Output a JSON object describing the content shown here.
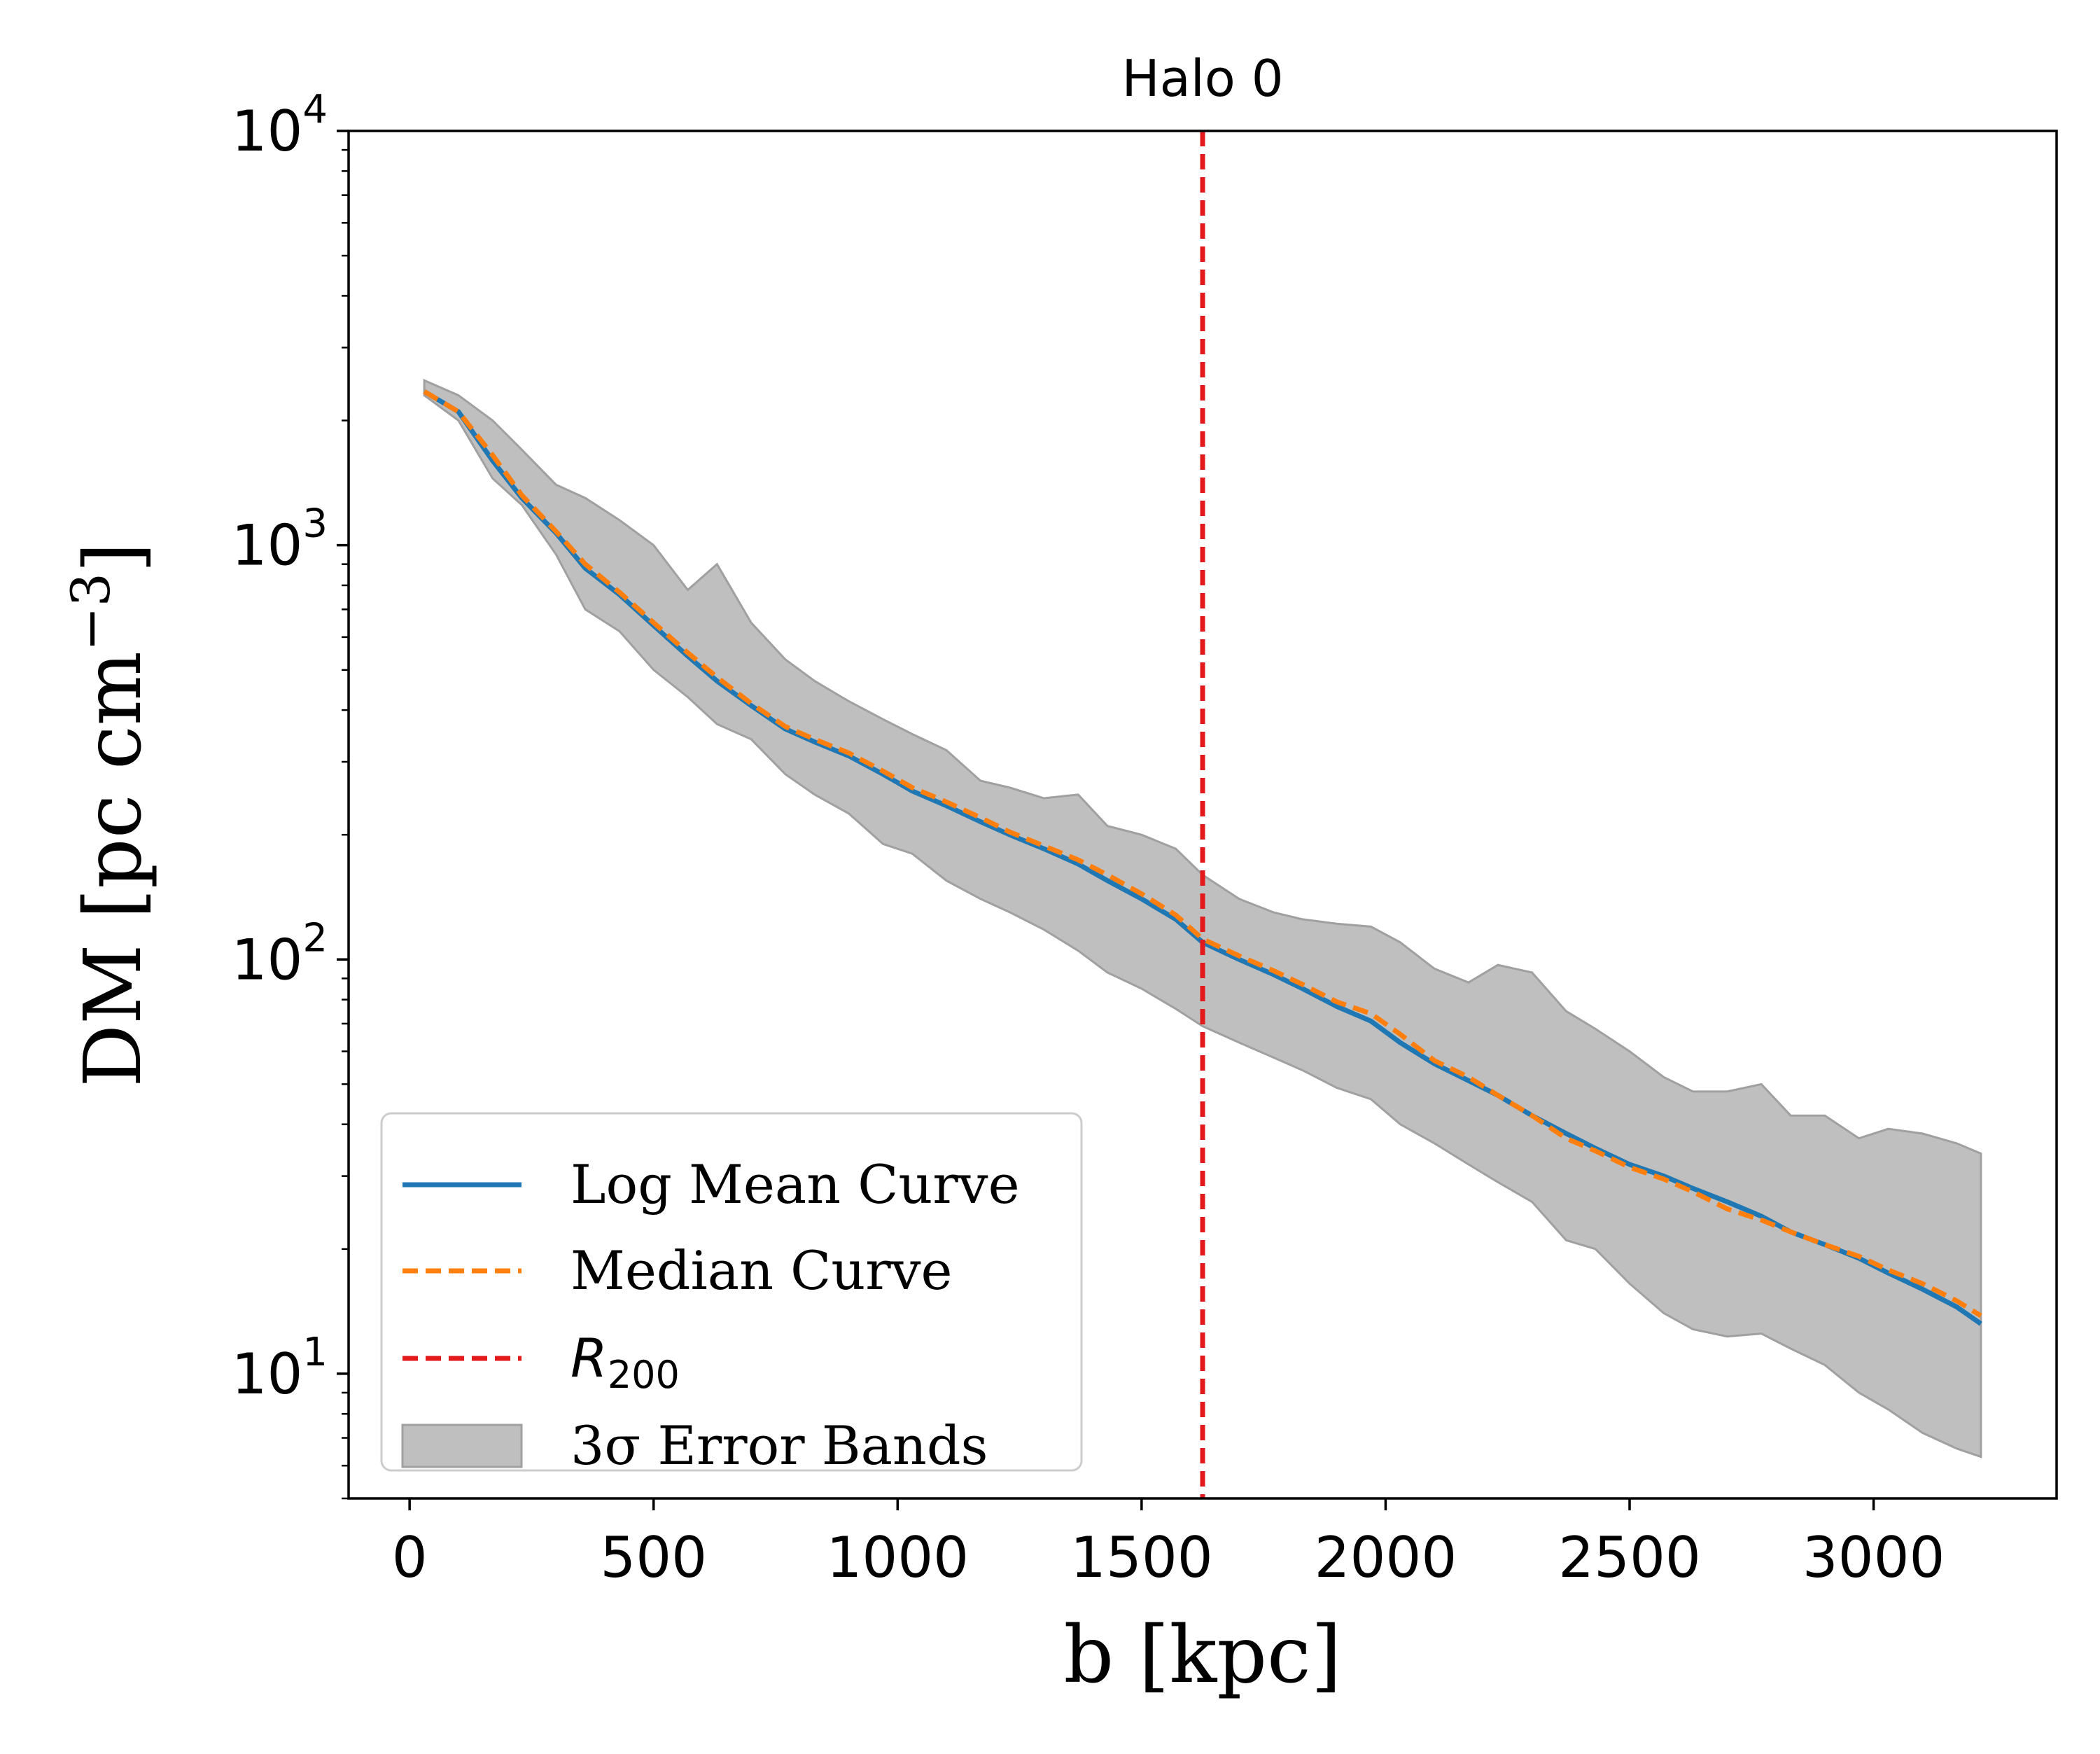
{
  "chart_data": {
    "type": "line",
    "title": "Halo 0",
    "xlabel": "b [kpc]",
    "ylabel": "DM [pc cm⁻³]",
    "ylabel_parts": {
      "base": "DM [pc cm",
      "sup": "−3",
      "end": "]"
    },
    "xlim": [
      -125,
      3375
    ],
    "ylim": [
      5,
      10000
    ],
    "yscale": "log",
    "grid": false,
    "legend_position": "lower-left",
    "x_ticks": [
      0,
      500,
      1000,
      1500,
      2000,
      2500,
      3000
    ],
    "x_tick_labels": [
      "0",
      "500",
      "1000",
      "1500",
      "2000",
      "2500",
      "3000"
    ],
    "y_ticks": [
      10,
      100,
      1000,
      10000
    ],
    "y_tick_labels": [
      {
        "base": "10",
        "exp": "1"
      },
      {
        "base": "10",
        "exp": "2"
      },
      {
        "base": "10",
        "exp": "3"
      },
      {
        "base": "10",
        "exp": "4"
      }
    ],
    "r200": 1625,
    "x": [
      30,
      100,
      170,
      230,
      300,
      360,
      430,
      500,
      570,
      630,
      700,
      770,
      830,
      900,
      970,
      1030,
      1100,
      1170,
      1230,
      1300,
      1370,
      1430,
      1500,
      1570,
      1625,
      1700,
      1770,
      1830,
      1900,
      1970,
      2030,
      2100,
      2170,
      2230,
      2300,
      2370,
      2430,
      2500,
      2570,
      2630,
      2700,
      2770,
      2830,
      2900,
      2970,
      3030,
      3100,
      3170,
      3220
    ],
    "series": [
      {
        "name": "Log Mean Curve",
        "color": "#1f77b4",
        "style": "solid",
        "values": [
          2350,
          2100,
          1600,
          1300,
          1070,
          880,
          760,
          640,
          540,
          470,
          410,
          360,
          335,
          310,
          280,
          255,
          235,
          215,
          200,
          185,
          170,
          155,
          140,
          125,
          110,
          100,
          92,
          85,
          77,
          71,
          63,
          56,
          51,
          47,
          42,
          38,
          35,
          32,
          30,
          28,
          26,
          24,
          22,
          20.5,
          19,
          17.5,
          16,
          14.5,
          13.2
        ]
      },
      {
        "name": "Median Curve",
        "color": "#ff7f0e",
        "style": "dashed",
        "values": [
          2350,
          2100,
          1650,
          1320,
          1080,
          900,
          770,
          650,
          550,
          480,
          415,
          365,
          340,
          315,
          285,
          260,
          240,
          220,
          203,
          188,
          174,
          160,
          144,
          128,
          112,
          102,
          94,
          87,
          79,
          74,
          66,
          57,
          52,
          47,
          42,
          37,
          34.5,
          31.5,
          29.5,
          27.5,
          25,
          23.5,
          22,
          20.5,
          19.2,
          17.8,
          16.5,
          15,
          13.8
        ]
      }
    ],
    "band": {
      "name": "3σ Error Bands",
      "color": "#bfbfbf",
      "edge_color": "#a0a0a0",
      "upper": [
        2500,
        2300,
        2000,
        1700,
        1400,
        1300,
        1150,
        1000,
        780,
        900,
        650,
        530,
        470,
        420,
        380,
        350,
        320,
        270,
        260,
        245,
        250,
        210,
        200,
        185,
        160,
        140,
        130,
        125,
        122,
        120,
        110,
        95,
        88,
        97,
        93,
        75,
        68,
        60,
        52,
        48,
        48,
        50,
        42,
        42,
        37,
        39,
        38,
        36,
        34
      ],
      "lower": [
        2300,
        2000,
        1450,
        1250,
        950,
        700,
        620,
        500,
        430,
        370,
        340,
        280,
        250,
        225,
        190,
        180,
        155,
        140,
        130,
        118,
        105,
        93,
        85,
        76,
        69,
        63,
        58,
        54,
        49,
        46,
        40,
        36,
        32,
        29,
        26,
        21,
        20,
        16.5,
        14,
        12.8,
        12.3,
        12.5,
        11.5,
        10.5,
        9,
        8.2,
        7.2,
        6.6,
        6.3
      ]
    },
    "legend": [
      {
        "label": "Log Mean Curve",
        "kind": "line",
        "color": "#1f77b4",
        "style": "solid"
      },
      {
        "label": "Median Curve",
        "kind": "line",
        "color": "#ff7f0e",
        "style": "dashed"
      },
      {
        "label": "R",
        "sub": "200",
        "kind": "line",
        "color": "#e31a1c",
        "style": "dashed"
      },
      {
        "label": "3σ Error Bands",
        "kind": "patch",
        "color": "#bfbfbf"
      }
    ]
  }
}
